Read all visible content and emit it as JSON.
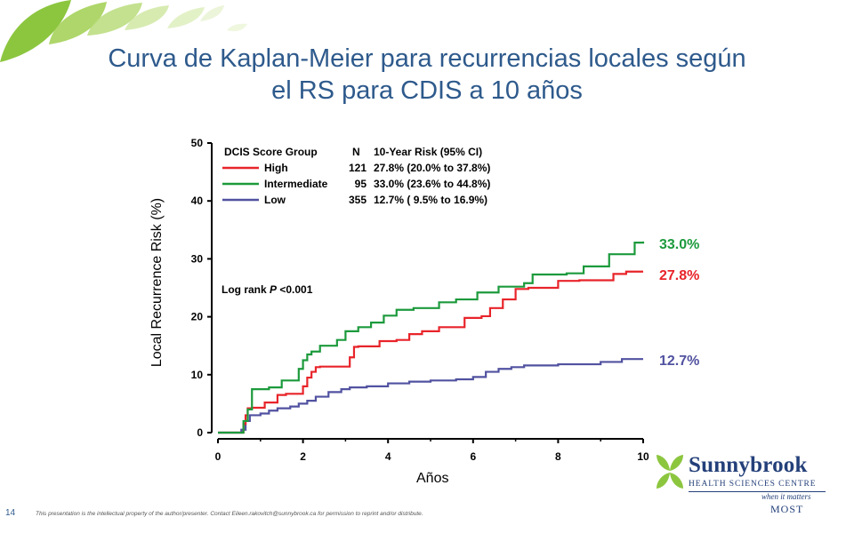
{
  "slide": {
    "title_line1": "Curva de Kaplan-Meier para recurrencias locales según",
    "title_line2": "el RS para CDIS a 10 años",
    "page_number": "14",
    "footer": "This presentation is the intellectual property of the author/presenter.   Contact Eileen.rakovitch@sunnybrook.ca for permission to reprint and/or distribute."
  },
  "logo": {
    "name": "Sunnybrook",
    "subtitle": "HEALTH SCIENCES CENTRE",
    "tagline1": "when it matters",
    "tagline2": "MOST"
  },
  "colors": {
    "title": "#2e5a8c",
    "high": "#e8242a",
    "intermediate": "#1c9a3c",
    "low": "#5152a0",
    "leaf_green": "#8cc63f"
  },
  "chart_data": {
    "type": "line",
    "step": true,
    "xlabel": "Años",
    "ylabel": "Local Recurrence Risk (%)",
    "xlim": [
      0,
      10
    ],
    "ylim": [
      0,
      50
    ],
    "xticks": [
      0,
      2,
      4,
      6,
      8,
      10
    ],
    "yticks": [
      0,
      10,
      20,
      30,
      40,
      50
    ],
    "grid": false,
    "legend_position": "top-left",
    "legend_header": [
      "DCIS Score Group",
      "N",
      "10-Year Risk (95% CI)"
    ],
    "annotation": {
      "prefix": "Log rank ",
      "italic": "P",
      "suffix": " <0.001"
    },
    "series": [
      {
        "name": "High",
        "key": "high",
        "n": "121",
        "risk": "27.8% (20.0% to 37.8%)",
        "end_label": "27.8%",
        "x": [
          0,
          0.6,
          0.65,
          0.7,
          0.8,
          1.1,
          1.4,
          1.6,
          2.0,
          2.1,
          2.2,
          2.3,
          2.4,
          3.1,
          3.2,
          3.3,
          3.8,
          4.2,
          4.5,
          4.8,
          5.2,
          5.8,
          6.2,
          6.4,
          6.7,
          7.0,
          7.3,
          8.0,
          8.5,
          9.3,
          9.6,
          10.0
        ],
        "y": [
          0,
          1.5,
          3.0,
          4.2,
          4.3,
          5.2,
          6.5,
          6.7,
          8.0,
          9.5,
          10.5,
          11.3,
          11.4,
          13.0,
          14.8,
          14.9,
          15.8,
          16.0,
          17.0,
          17.5,
          18.2,
          19.8,
          20.1,
          21.5,
          23.0,
          24.8,
          25.0,
          26.2,
          26.3,
          27.4,
          27.8,
          27.8
        ]
      },
      {
        "name": "Intermediate",
        "key": "intermediate",
        "n": "95",
        "risk": "33.0% (23.6% to 44.8%)",
        "end_label": "33.0%",
        "x": [
          0,
          0.6,
          0.7,
          0.8,
          1.2,
          1.5,
          1.9,
          2.0,
          2.1,
          2.2,
          2.4,
          2.8,
          3.0,
          3.3,
          3.6,
          3.9,
          4.2,
          4.6,
          5.2,
          5.6,
          6.1,
          6.6,
          7.2,
          7.4,
          8.2,
          8.6,
          9.2,
          9.8,
          10.0
        ],
        "y": [
          0,
          2.0,
          4.0,
          7.5,
          7.8,
          9.0,
          11.0,
          12.5,
          13.5,
          14.0,
          15.0,
          16.0,
          17.5,
          18.2,
          19.0,
          20.2,
          21.2,
          21.5,
          22.5,
          23.0,
          24.2,
          25.2,
          25.8,
          27.3,
          27.5,
          28.7,
          30.8,
          32.8,
          33.0
        ]
      },
      {
        "name": "Low",
        "key": "low",
        "n": "355",
        "risk": "12.7% ( 9.5% to 16.9%)",
        "end_label": "12.7%",
        "x": [
          0,
          0.55,
          0.65,
          0.75,
          1.0,
          1.2,
          1.4,
          1.7,
          1.9,
          2.1,
          2.3,
          2.6,
          2.9,
          3.1,
          3.5,
          4.0,
          4.5,
          5.0,
          5.6,
          6.0,
          6.3,
          6.6,
          6.9,
          7.2,
          8.0,
          9.0,
          9.5,
          10.0
        ],
        "y": [
          0,
          0.5,
          2.0,
          3.0,
          3.3,
          3.8,
          4.2,
          4.5,
          5.0,
          5.5,
          6.2,
          7.0,
          7.5,
          7.8,
          8.0,
          8.5,
          8.8,
          9.0,
          9.2,
          9.6,
          10.5,
          11.0,
          11.3,
          11.6,
          11.8,
          12.2,
          12.7,
          12.7
        ]
      }
    ]
  }
}
